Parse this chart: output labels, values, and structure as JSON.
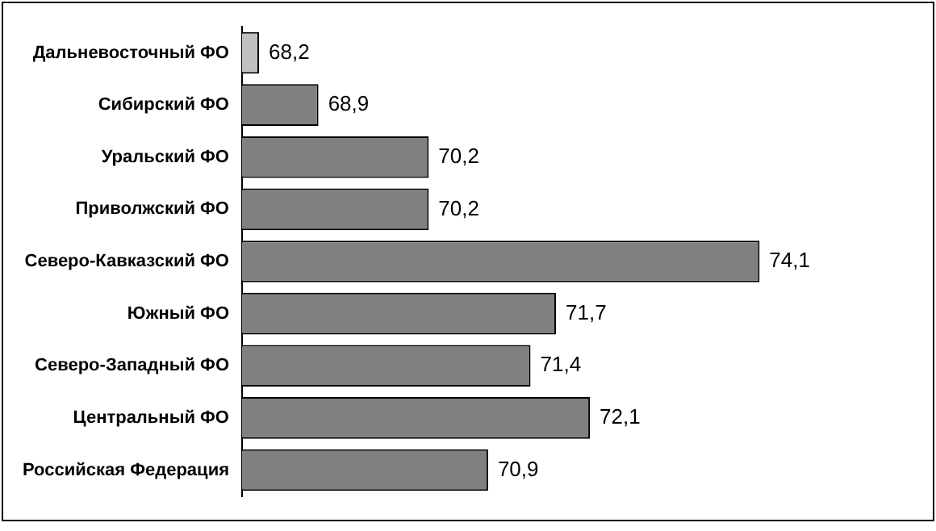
{
  "chart_data": {
    "type": "bar",
    "orientation": "horizontal",
    "categories": [
      "Дальневосточный ФО",
      "Сибирский ФО",
      "Уральский ФО",
      "Приволжский ФО",
      "Северо-Кавказский ФО",
      "Южный ФО",
      "Северо-Западный ФО",
      "Центральный ФО",
      "Российская Федерация"
    ],
    "values": [
      68.2,
      68.9,
      70.2,
      70.2,
      74.1,
      71.7,
      71.4,
      72.1,
      70.9
    ],
    "colors": [
      "#c0c0c0",
      "#808080",
      "#808080",
      "#808080",
      "#808080",
      "#808080",
      "#808080",
      "#808080",
      "#808080"
    ],
    "value_labels": [
      "68,2",
      "68,9",
      "70,2",
      "70,2",
      "74,1",
      "71,7",
      "71,4",
      "72,1",
      "70,9"
    ],
    "legend": false
  }
}
